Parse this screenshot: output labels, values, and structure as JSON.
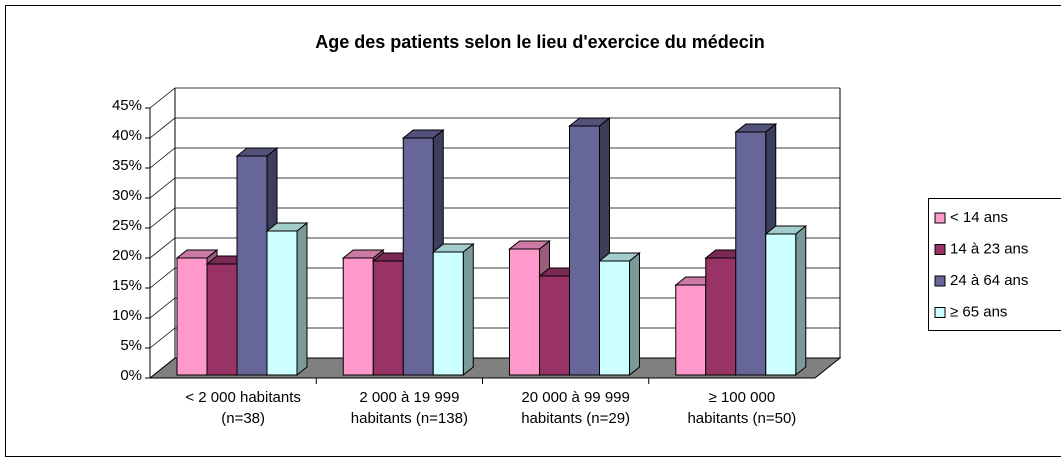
{
  "chart_data": {
    "type": "bar3d",
    "title": "Age des patients selon le lieu d'exercice du médecin",
    "categories": [
      "< 2 000 habitants\n(n=38)",
      "2 000 à 19 999\nhabitants (n=138)",
      "20 000 à 99 999\nhabitants (n=29)",
      "≥ 100 000\nhabitants (n=50)"
    ],
    "series": [
      {
        "name": "< 14 ans",
        "color": "#ff99cc",
        "values": [
          20,
          20,
          21.5,
          15.5
        ]
      },
      {
        "name": "14 à 23 ans",
        "color": "#993366",
        "values": [
          19,
          19.5,
          17,
          20
        ]
      },
      {
        "name": "24 à 64 ans",
        "color": "#666699",
        "values": [
          37,
          40,
          42,
          41
        ]
      },
      {
        "name": "≥ 65 ans",
        "color": "#ccffff",
        "values": [
          24.5,
          21,
          19.5,
          24
        ]
      }
    ],
    "ylim": [
      0,
      45
    ],
    "yticks": [
      {
        "value": 0,
        "label": "0%"
      },
      {
        "value": 5,
        "label": "5%"
      },
      {
        "value": 10,
        "label": "10%"
      },
      {
        "value": 15,
        "label": "15%"
      },
      {
        "value": 20,
        "label": "20%"
      },
      {
        "value": 25,
        "label": "25%"
      },
      {
        "value": 30,
        "label": "30%"
      },
      {
        "value": 35,
        "label": "35%"
      },
      {
        "value": 40,
        "label": "40%"
      },
      {
        "value": 45,
        "label": "45%"
      }
    ],
    "grid": true,
    "legend": "right"
  }
}
